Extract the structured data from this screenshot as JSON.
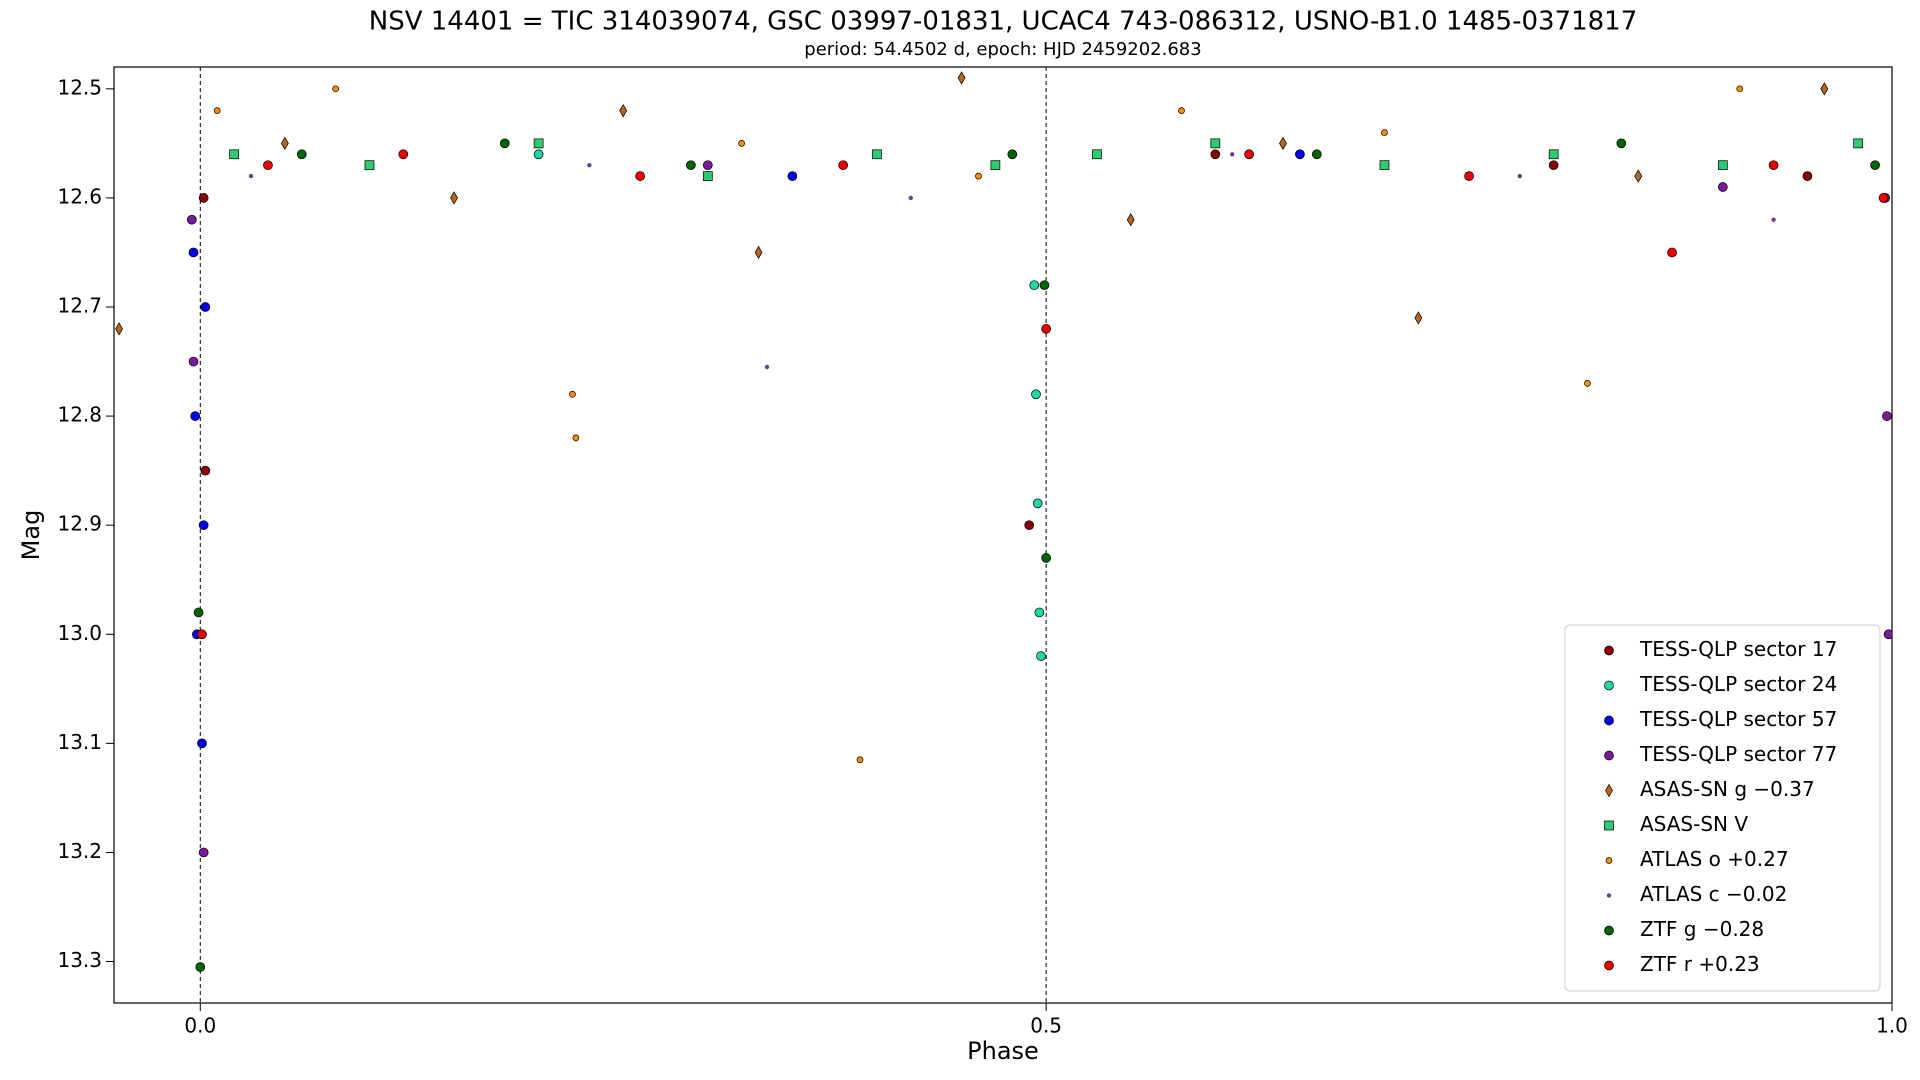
{
  "chart_data": {
    "type": "scatter",
    "title": "NSV 14401 = TIC 314039074, GSC 03997-01831, UCAC4 743-086312, USNO-B1.0 1485-0371817",
    "subtitle": "period: 54.4502 d, epoch: HJD 2459202.683",
    "x_label": "Phase",
    "y_label": "Mag",
    "xlim": [
      -0.051,
      1.0
    ],
    "ylim": [
      12.48,
      13.338
    ],
    "y_inverted": true,
    "xticks": [
      {
        "value": 0,
        "label": "0.0"
      },
      {
        "value": 0.5,
        "label": "0.5"
      },
      {
        "value": 1,
        "label": "1.0"
      }
    ],
    "yticks": [
      12.5,
      12.6,
      12.7,
      12.8,
      12.9,
      {
        "value": 13,
        "label": "13.0"
      },
      13.1,
      13.2,
      13.3
    ],
    "vlines": [
      0,
      0.5
    ],
    "legend": "lower right",
    "series": [
      {
        "name": "TESS-QLP sector 17",
        "color": "#8b0000",
        "marker": "circle",
        "x": [
          0.002,
          0.003,
          0.1,
          0.3,
          0.49,
          0.6,
          0.8,
          0.95
        ],
        "values": [
          12.6,
          12.85,
          12.57,
          12.58,
          12.9,
          12.56,
          12.57,
          12.58
        ]
      },
      {
        "name": "TESS-QLP sector 24",
        "color": "#1fd8a8",
        "marker": "circle",
        "x": [
          0.493,
          0.494,
          0.495,
          0.496,
          0.497,
          0.2,
          0.7
        ],
        "values": [
          12.68,
          12.78,
          12.88,
          12.98,
          13.02,
          12.56,
          12.57
        ]
      },
      {
        "name": "TESS-QLP sector 57",
        "color": "#0000ee",
        "marker": "circle",
        "x": [
          -0.004,
          -0.003,
          -0.002,
          0.001,
          0.002,
          0.003,
          0.35,
          0.65
        ],
        "values": [
          12.65,
          12.8,
          13.0,
          13.1,
          12.9,
          12.7,
          12.58,
          12.56
        ]
      },
      {
        "name": "TESS-QLP sector 77",
        "color": "#7a1a9a",
        "marker": "circle",
        "x": [
          -0.005,
          -0.004,
          0.002,
          0.996,
          0.997,
          0.998,
          0.3,
          0.9
        ],
        "values": [
          12.62,
          12.75,
          13.2,
          12.6,
          12.8,
          13.0,
          12.57,
          12.59
        ]
      },
      {
        "name": "ASAS-SN g −0.37",
        "color": "#b5651d",
        "marker": "diamond",
        "x": [
          -0.048,
          0.05,
          0.15,
          0.25,
          0.33,
          0.45,
          0.55,
          0.64,
          0.72,
          0.85,
          0.96
        ],
        "values": [
          12.72,
          12.55,
          12.6,
          12.52,
          12.65,
          12.49,
          12.62,
          12.55,
          12.71,
          12.58,
          12.5
        ]
      },
      {
        "name": "ASAS-SN V",
        "color": "#2ecc71",
        "marker": "square",
        "x": [
          0.02,
          0.1,
          0.2,
          0.3,
          0.4,
          0.47,
          0.53,
          0.6,
          0.7,
          0.8,
          0.9,
          0.98
        ],
        "values": [
          12.56,
          12.57,
          12.55,
          12.58,
          12.56,
          12.57,
          12.56,
          12.55,
          12.57,
          12.56,
          12.57,
          12.55
        ]
      },
      {
        "name": "ATLAS o +0.27",
        "color": "#ff8c00",
        "marker": "circle-small",
        "x": [
          0.01,
          0.08,
          0.22,
          0.222,
          0.32,
          0.39,
          0.46,
          0.58,
          0.7,
          0.82,
          0.91
        ],
        "values": [
          12.52,
          12.5,
          12.78,
          12.82,
          12.55,
          13.115,
          12.58,
          12.52,
          12.54,
          12.77,
          12.5
        ]
      },
      {
        "name": "ATLAS c −0.02",
        "color": "#6a3d9a",
        "marker": "dot",
        "x": [
          0.03,
          0.23,
          0.335,
          0.42,
          0.61,
          0.78,
          0.93
        ],
        "values": [
          12.58,
          12.57,
          12.755,
          12.6,
          12.56,
          12.58,
          12.62
        ]
      },
      {
        "name": "ZTF g −0.28",
        "color": "#006400",
        "marker": "circle",
        "x": [
          -0.001,
          0.0,
          0.06,
          0.18,
          0.29,
          0.48,
          0.499,
          0.5,
          0.66,
          0.84,
          0.99
        ],
        "values": [
          12.98,
          13.305,
          12.56,
          12.55,
          12.57,
          12.56,
          12.68,
          12.93,
          12.56,
          12.55,
          12.57
        ]
      },
      {
        "name": "ZTF r +0.23",
        "color": "#ee0000",
        "marker": "circle",
        "x": [
          0.001,
          0.04,
          0.12,
          0.26,
          0.38,
          0.5,
          0.62,
          0.75,
          0.87,
          0.93,
          0.995
        ],
        "values": [
          13.0,
          12.57,
          12.56,
          12.58,
          12.57,
          12.72,
          12.56,
          12.58,
          12.65,
          12.57,
          12.6
        ]
      }
    ]
  }
}
